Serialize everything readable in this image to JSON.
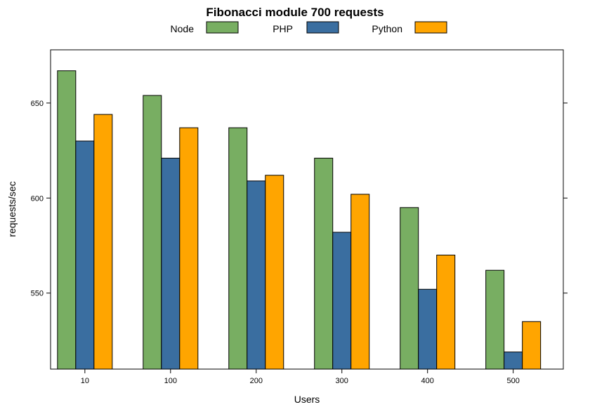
{
  "chart_data": {
    "type": "bar",
    "title": "Fibonacci module 700 requests",
    "xlabel": "Users",
    "ylabel": "requests/sec",
    "categories": [
      "10",
      "100",
      "200",
      "300",
      "400",
      "500"
    ],
    "series": [
      {
        "name": "Node",
        "color": "#78AE62",
        "values": [
          667,
          654,
          637,
          621,
          595,
          562
        ]
      },
      {
        "name": "PHP",
        "color": "#3A6EA0",
        "values": [
          630,
          621,
          609,
          582,
          552,
          519
        ]
      },
      {
        "name": "Python",
        "color": "#FFA500",
        "values": [
          644,
          637,
          612,
          602,
          570,
          535
        ]
      }
    ],
    "yticks": [
      550,
      600,
      650
    ],
    "ylim": [
      510,
      678
    ],
    "grid": false,
    "legend_position": "top"
  }
}
